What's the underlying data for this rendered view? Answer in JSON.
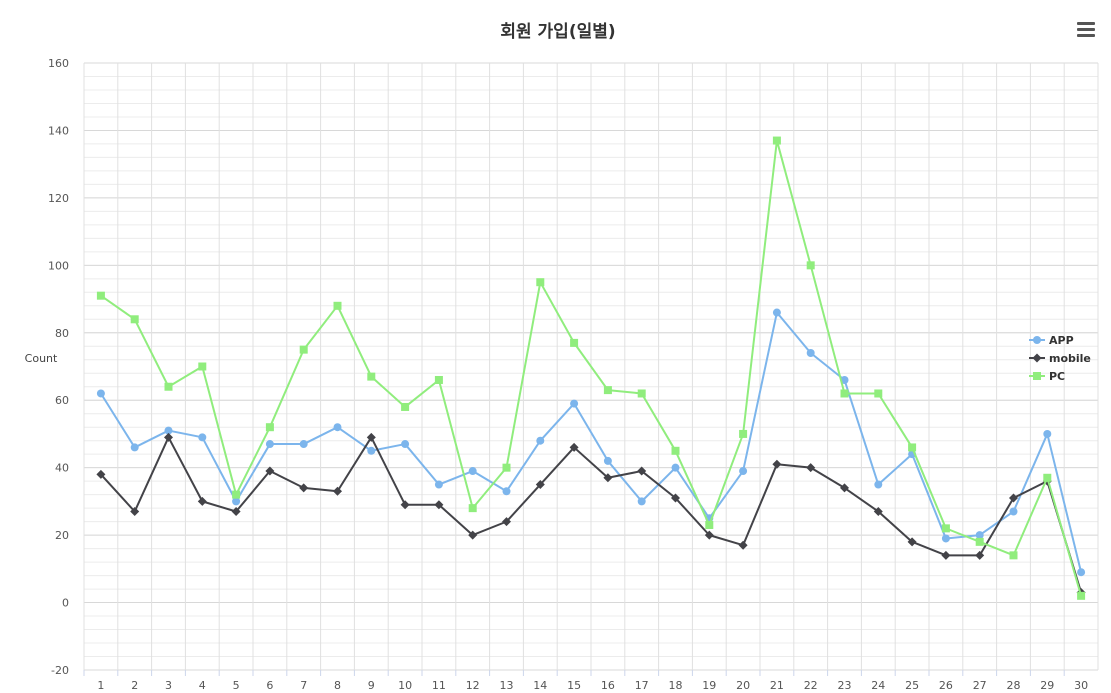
{
  "chart_data": {
    "type": "line",
    "title": "회원 가입(일별)",
    "xlabel": "",
    "ylabel": "Count",
    "ylim": [
      -20,
      160
    ],
    "yticks": [
      -20,
      0,
      20,
      40,
      60,
      80,
      100,
      120,
      140,
      160
    ],
    "grid": true,
    "legend_position": "right",
    "categories": [
      "1",
      "2",
      "3",
      "4",
      "5",
      "6",
      "7",
      "8",
      "9",
      "10",
      "11",
      "12",
      "13",
      "14",
      "15",
      "16",
      "17",
      "18",
      "19",
      "20",
      "21",
      "22",
      "23",
      "24",
      "25",
      "26",
      "27",
      "28",
      "29",
      "30"
    ],
    "series": [
      {
        "name": "APP",
        "color": "#7cb5ec",
        "marker": "circle",
        "values": [
          62,
          46,
          51,
          49,
          30,
          47,
          47,
          52,
          45,
          47,
          35,
          39,
          33,
          48,
          59,
          42,
          30,
          40,
          25,
          39,
          86,
          74,
          66,
          35,
          44,
          19,
          20,
          27,
          50,
          9
        ]
      },
      {
        "name": "mobile",
        "color": "#434348",
        "marker": "diamond",
        "values": [
          38,
          27,
          49,
          30,
          27,
          39,
          34,
          33,
          49,
          29,
          29,
          20,
          24,
          35,
          46,
          37,
          39,
          31,
          20,
          17,
          41,
          40,
          34,
          27,
          18,
          14,
          14,
          31,
          36,
          3
        ]
      },
      {
        "name": "PC",
        "color": "#90ed7d",
        "marker": "square",
        "values": [
          91,
          84,
          64,
          70,
          32,
          52,
          75,
          88,
          67,
          58,
          66,
          28,
          40,
          95,
          77,
          63,
          62,
          45,
          23,
          50,
          137,
          100,
          62,
          62,
          46,
          22,
          18,
          14,
          37,
          2
        ]
      }
    ]
  },
  "menu_icon": "hamburger-menu-icon"
}
